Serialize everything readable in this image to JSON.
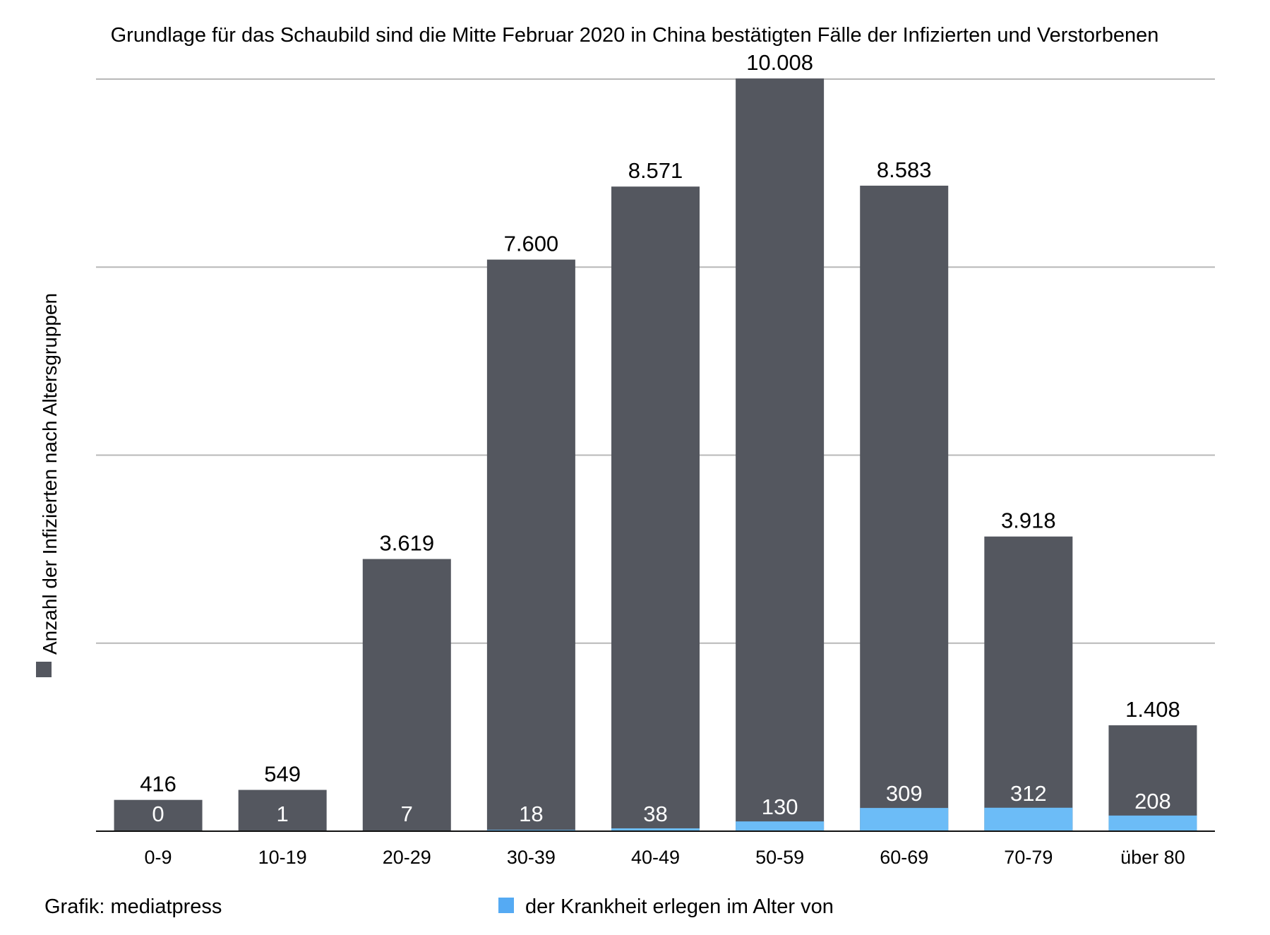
{
  "chart_data": {
    "type": "bar",
    "title": "Grundlage für das Schaubild sind die Mitte Februar 2020 in China bestätigten Fälle der Infizierten und Verstorbenen",
    "ylabel": "Anzahl der Infizierten nach Altersgruppen",
    "xlabel": "",
    "categories": [
      "0-9",
      "10-19",
      "20-29",
      "30-39",
      "40-49",
      "50-59",
      "60-69",
      "70-79",
      "über 80"
    ],
    "series": [
      {
        "name": "Anzahl der Infizierten nach Altersgruppen",
        "color": "#54575f",
        "values": [
          416,
          549,
          3619,
          7600,
          8571,
          10008,
          8583,
          3918,
          1408
        ],
        "labels": [
          "416",
          "549",
          "3.619",
          "7.600",
          "8.571",
          "10.008",
          "8.583",
          "3.918",
          "1.408"
        ]
      },
      {
        "name": "der Krankheit erlegen im Alter von",
        "color": "#6cbcf7",
        "values": [
          0,
          1,
          7,
          18,
          38,
          130,
          309,
          312,
          208
        ],
        "labels": [
          "0",
          "1",
          "7",
          "18",
          "38",
          "130",
          "309",
          "312",
          "208"
        ]
      }
    ],
    "ylim": [
      0,
      10000
    ],
    "grid": true,
    "stacked": false,
    "overlapping": true,
    "legend_placement": "left-vertical and bottom"
  },
  "credit": "Grafik: mediatpress"
}
